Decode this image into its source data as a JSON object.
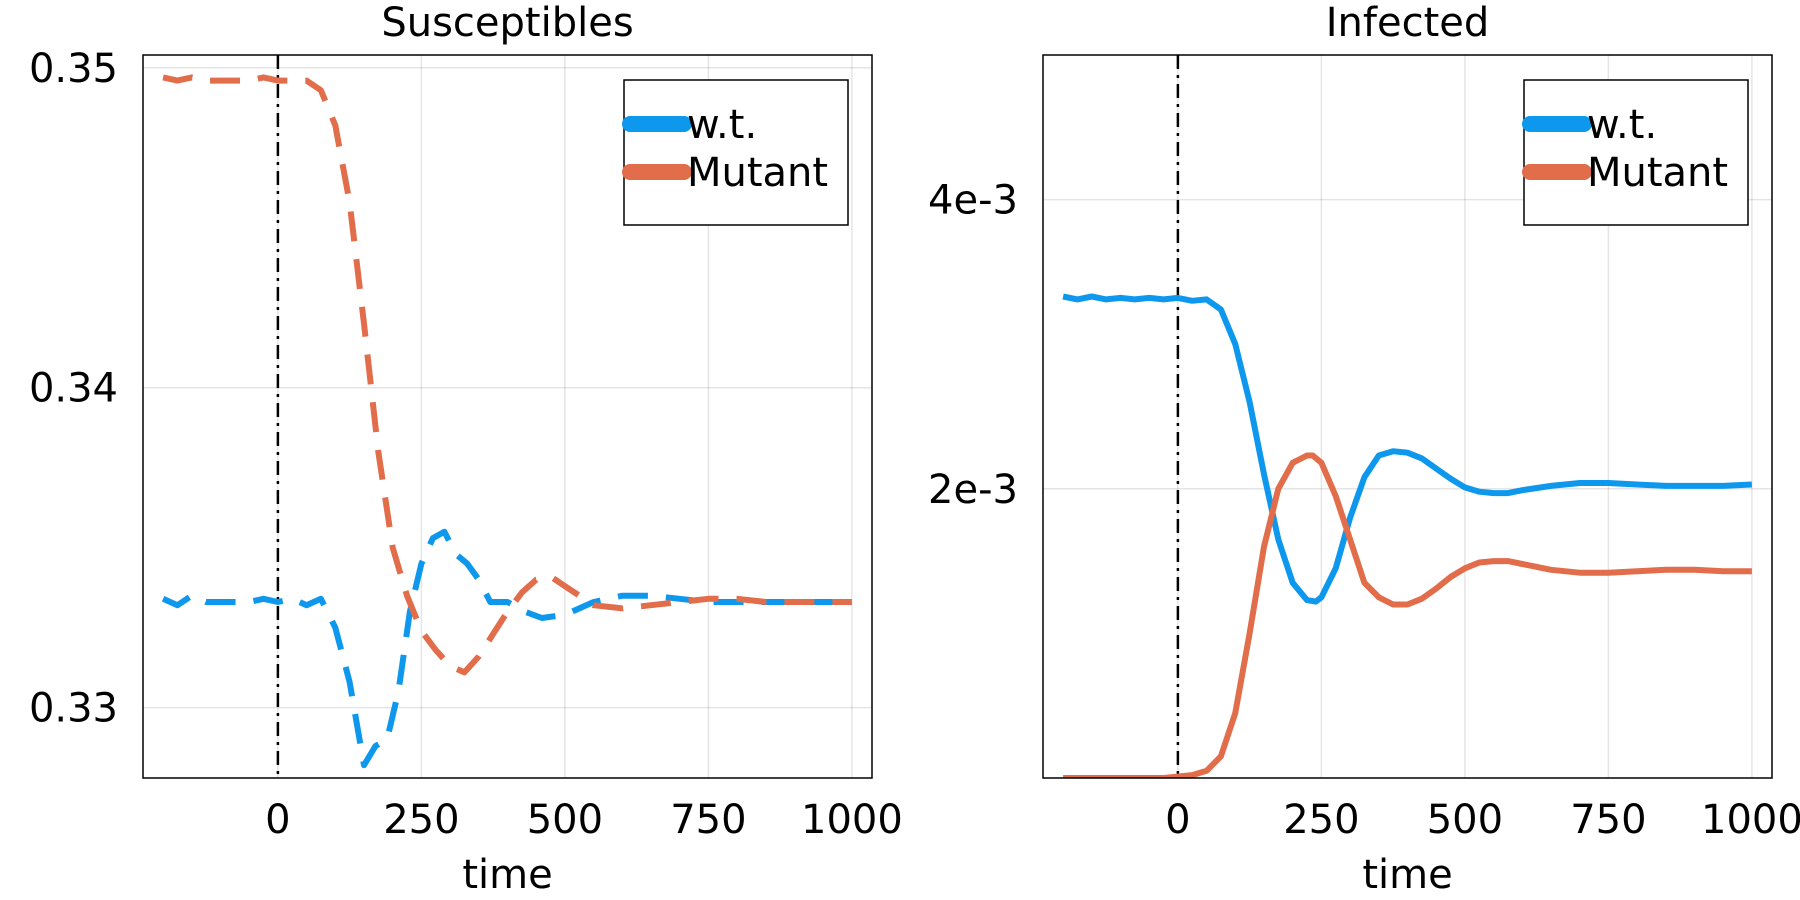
{
  "colors": {
    "wt": "#0e98ed",
    "mutant": "#e26d4a"
  },
  "chart_data": [
    {
      "type": "line",
      "title": "Susceptibles",
      "xlabel": "time",
      "ylabel": "",
      "xlim": [
        -235,
        1035
      ],
      "ylim": [
        0.3278,
        0.3504
      ],
      "xticks": [
        0,
        250,
        500,
        750,
        1000
      ],
      "xtick_labels": [
        "0",
        "250",
        "500",
        "750",
        "1000"
      ],
      "yticks": [
        0.33,
        0.34,
        0.35
      ],
      "ytick_labels": [
        "0.33",
        "0.34",
        "0.35"
      ],
      "grid": true,
      "line_style": "dashed",
      "vline_x": 0,
      "legend_position": "top-right",
      "legend": [
        "w.t.",
        "Mutant"
      ],
      "series": [
        {
          "name": "w.t.",
          "x": [
            -200,
            -175,
            -150,
            -125,
            -100,
            -75,
            -50,
            -25,
            0,
            25,
            50,
            75,
            100,
            125,
            150,
            170,
            190,
            210,
            230,
            250,
            270,
            290,
            310,
            330,
            350,
            370,
            400,
            430,
            460,
            500,
            550,
            600,
            650,
            700,
            750,
            800,
            850,
            900,
            950,
            1000
          ],
          "y": [
            0.3334,
            0.3332,
            0.3335,
            0.3333,
            0.3333,
            0.3333,
            0.3333,
            0.3334,
            0.3333,
            0.3334,
            0.3332,
            0.3334,
            0.3325,
            0.3308,
            0.3282,
            0.3288,
            0.329,
            0.3305,
            0.333,
            0.3345,
            0.3353,
            0.3355,
            0.3348,
            0.3345,
            0.334,
            0.3333,
            0.3333,
            0.333,
            0.3328,
            0.3329,
            0.3333,
            0.3335,
            0.3335,
            0.3334,
            0.3333,
            0.3333,
            0.3333,
            0.3333,
            0.3333,
            0.3333
          ]
        },
        {
          "name": "Mutant",
          "x": [
            -200,
            -175,
            -150,
            -125,
            -100,
            -75,
            -50,
            -25,
            0,
            25,
            50,
            75,
            100,
            125,
            150,
            175,
            200,
            225,
            250,
            275,
            300,
            325,
            350,
            375,
            400,
            425,
            450,
            475,
            500,
            550,
            600,
            650,
            700,
            750,
            800,
            850,
            900,
            950,
            1000
          ],
          "y": [
            0.3497,
            0.3496,
            0.3497,
            0.3496,
            0.3496,
            0.3496,
            0.3496,
            0.3497,
            0.3496,
            0.3496,
            0.3496,
            0.3493,
            0.3482,
            0.3458,
            0.342,
            0.338,
            0.335,
            0.3335,
            0.3324,
            0.3318,
            0.3313,
            0.3311,
            0.3316,
            0.3323,
            0.333,
            0.3336,
            0.334,
            0.3341,
            0.3338,
            0.3332,
            0.3331,
            0.3332,
            0.3333,
            0.3334,
            0.3334,
            0.3333,
            0.3333,
            0.3333,
            0.3333
          ]
        }
      ]
    },
    {
      "type": "line",
      "title": "Infected",
      "xlabel": "time",
      "ylabel": "",
      "xlim": [
        -235,
        1035
      ],
      "ylim": [
        0.0,
        0.005
      ],
      "xticks": [
        0,
        250,
        500,
        750,
        1000
      ],
      "xtick_labels": [
        "0",
        "250",
        "500",
        "750",
        "1000"
      ],
      "yticks": [
        0.002,
        0.004
      ],
      "ytick_labels": [
        "2e-3",
        "4e-3"
      ],
      "grid": true,
      "line_style": "solid",
      "vline_x": 0,
      "legend_position": "top-right",
      "legend": [
        "w.t.",
        "Mutant"
      ],
      "series": [
        {
          "name": "w.t.",
          "x": [
            -200,
            -175,
            -150,
            -125,
            -100,
            -75,
            -50,
            -25,
            0,
            25,
            50,
            75,
            100,
            125,
            150,
            175,
            200,
            225,
            240,
            250,
            275,
            300,
            325,
            350,
            375,
            400,
            425,
            450,
            475,
            500,
            525,
            550,
            575,
            600,
            650,
            700,
            750,
            800,
            850,
            900,
            950,
            1000
          ],
          "y": [
            0.00333,
            0.00331,
            0.00333,
            0.00331,
            0.00332,
            0.00331,
            0.00332,
            0.00331,
            0.00332,
            0.0033,
            0.00331,
            0.00324,
            0.003,
            0.0026,
            0.0021,
            0.00165,
            0.00135,
            0.00123,
            0.00122,
            0.00125,
            0.00145,
            0.0018,
            0.00208,
            0.00223,
            0.00226,
            0.00225,
            0.00221,
            0.00214,
            0.00207,
            0.00201,
            0.00198,
            0.00197,
            0.00197,
            0.00199,
            0.00202,
            0.00204,
            0.00204,
            0.00203,
            0.00202,
            0.00202,
            0.00202,
            0.00203
          ]
        },
        {
          "name": "Mutant",
          "x": [
            -200,
            -175,
            -150,
            -125,
            -100,
            -75,
            -50,
            -25,
            0,
            25,
            50,
            75,
            100,
            125,
            150,
            175,
            200,
            225,
            235,
            250,
            275,
            300,
            325,
            350,
            375,
            400,
            425,
            450,
            475,
            500,
            525,
            550,
            575,
            600,
            650,
            700,
            750,
            800,
            850,
            900,
            950,
            1000
          ],
          "y": [
            0.0,
            0.0,
            0.0,
            0.0,
            0.0,
            0.0,
            0.0,
            0.0,
            1e-05,
            2e-05,
            5e-05,
            0.00015,
            0.00045,
            0.001,
            0.0016,
            0.002,
            0.00218,
            0.00223,
            0.00223,
            0.00218,
            0.00195,
            0.00165,
            0.00135,
            0.00125,
            0.0012,
            0.0012,
            0.00124,
            0.00131,
            0.00139,
            0.00145,
            0.00149,
            0.0015,
            0.0015,
            0.00148,
            0.00144,
            0.00142,
            0.00142,
            0.00143,
            0.00144,
            0.00144,
            0.00143,
            0.00143
          ]
        }
      ]
    }
  ]
}
